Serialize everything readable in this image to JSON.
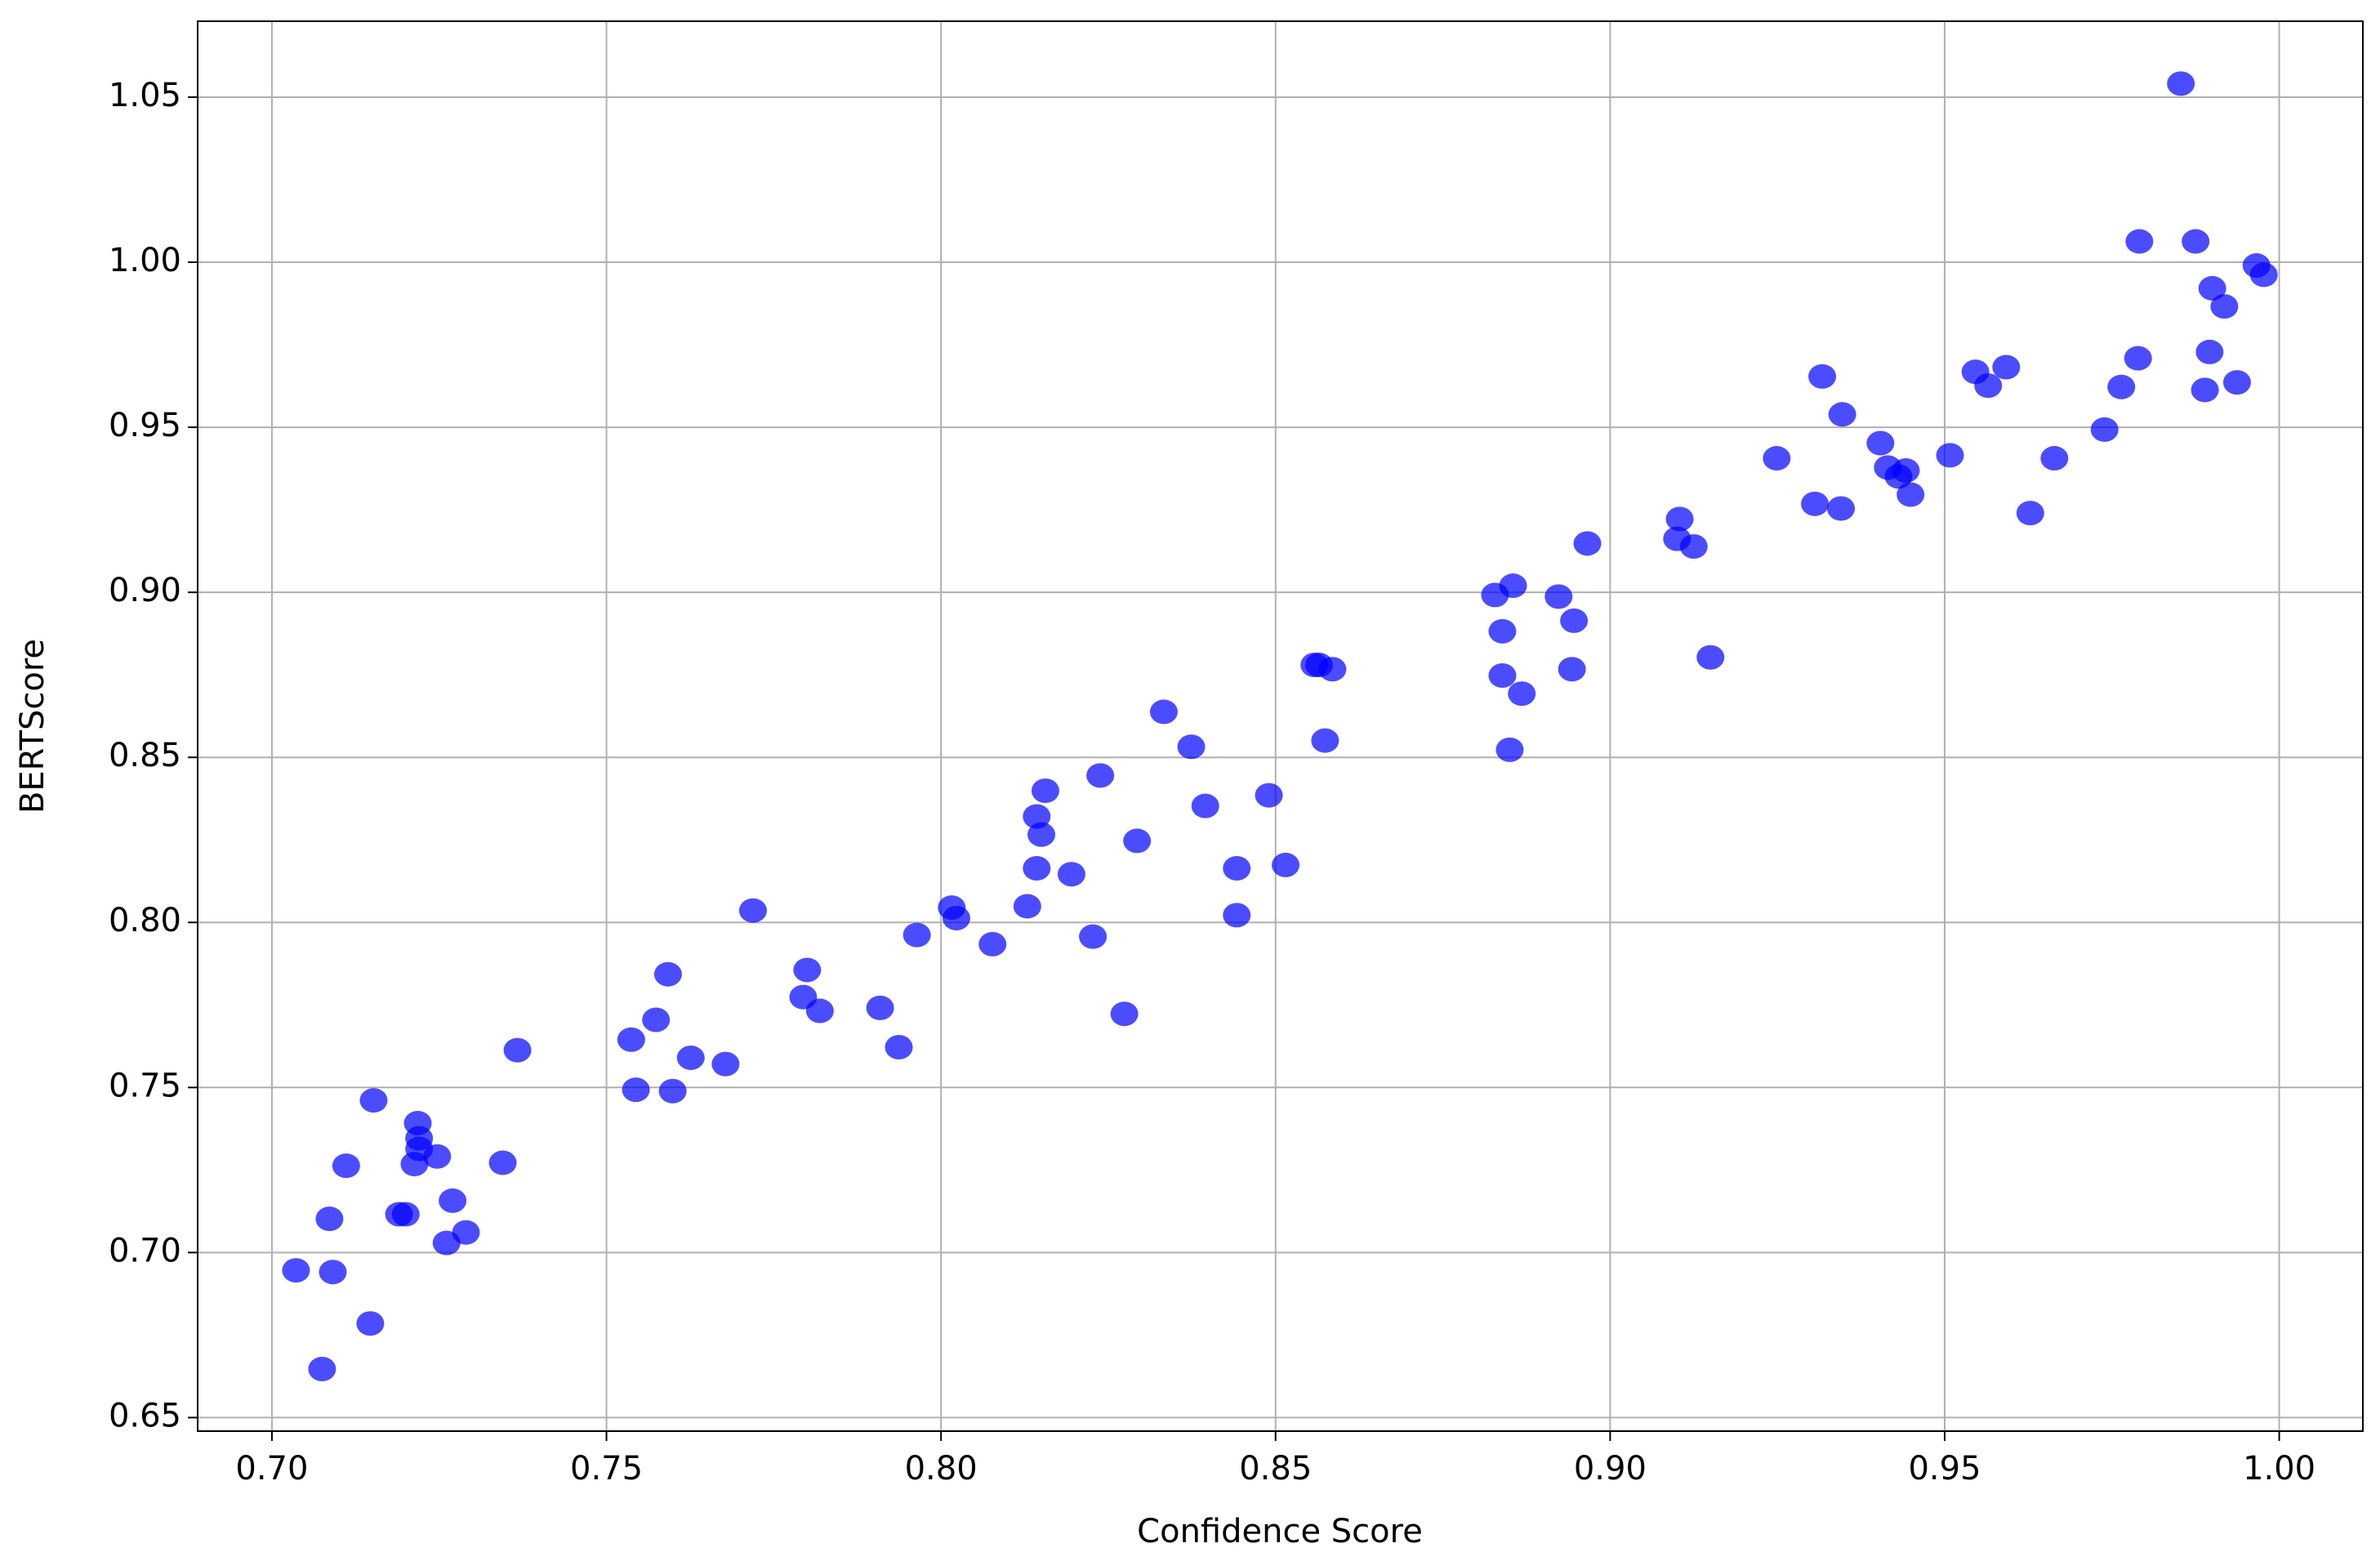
{
  "chart_data": {
    "type": "scatter",
    "xlabel": "Confidence Score",
    "ylabel": "BERTScore",
    "xlim": [
      0.6889,
      1.0125
    ],
    "ylim": [
      0.6459,
      1.073
    ],
    "xticks": [
      {
        "value": 0.7,
        "label": "0.70"
      },
      0.75,
      {
        "value": 0.8,
        "label": "0.80"
      },
      0.85,
      {
        "value": 0.9,
        "label": "0.90"
      },
      0.95,
      {
        "value": 1.0,
        "label": "1.00"
      }
    ],
    "yticks": [
      0.65,
      {
        "value": 0.7,
        "label": "0.70"
      },
      0.75,
      {
        "value": 0.8,
        "label": "0.80"
      },
      0.85,
      {
        "value": 0.9,
        "label": "0.90"
      },
      0.95,
      {
        "value": 1.0,
        "label": "1.00"
      },
      1.05
    ],
    "grid": true,
    "color": "#0000ff",
    "x": [
      0.7036,
      0.7075,
      0.7086,
      0.7091,
      0.7111,
      0.7147,
      0.7152,
      0.719,
      0.72,
      0.7213,
      0.7218,
      0.722,
      0.722,
      0.7247,
      0.7261,
      0.727,
      0.729,
      0.7345,
      0.7367,
      0.7537,
      0.7544,
      0.7574,
      0.7592,
      0.7599,
      0.7626,
      0.7678,
      0.7719,
      0.7794,
      0.78,
      0.7819,
      0.7909,
      0.7937,
      0.7964,
      0.8016,
      0.8023,
      0.8077,
      0.8129,
      0.8143,
      0.8143,
      0.815,
      0.8156,
      0.8195,
      0.8227,
      0.8238,
      0.8274,
      0.8293,
      0.8333,
      0.8374,
      0.8395,
      0.8442,
      0.8442,
      0.849,
      0.8515,
      0.8558,
      0.8565,
      0.8574,
      0.8585,
      0.8828,
      0.8839,
      0.8839,
      0.885,
      0.8855,
      0.8868,
      0.8923,
      0.8943,
      0.8946,
      0.8966,
      0.91,
      0.9104,
      0.9125,
      0.915,
      0.9249,
      0.9306,
      0.9317,
      0.9345,
      0.9347,
      0.9404,
      0.9415,
      0.9431,
      0.9442,
      0.9449,
      0.9508,
      0.9546,
      0.9565,
      0.9592,
      0.9628,
      0.9664,
      0.9739,
      0.9764,
      0.9789,
      0.9791,
      0.9853,
      0.9875,
      0.9889,
      0.9896,
      0.99,
      0.9918,
      0.9937,
      0.9966,
      0.9977
    ],
    "values": [
      0.6946,
      0.6647,
      0.7102,
      0.6941,
      0.7263,
      0.6785,
      0.7461,
      0.7116,
      0.7116,
      0.7268,
      0.7392,
      0.7346,
      0.7314,
      0.7291,
      0.7029,
      0.7157,
      0.7061,
      0.7272,
      0.7613,
      0.7645,
      0.7493,
      0.7705,
      0.7843,
      0.7489,
      0.759,
      0.7571,
      0.8036,
      0.7774,
      0.7856,
      0.7732,
      0.7741,
      0.7622,
      0.7962,
      0.8045,
      0.8013,
      0.7934,
      0.8049,
      0.8321,
      0.8164,
      0.8266,
      0.8399,
      0.8146,
      0.7957,
      0.8445,
      0.7723,
      0.8247,
      0.8638,
      0.8532,
      0.8353,
      0.8164,
      0.8022,
      0.8385,
      0.8174,
      0.878,
      0.878,
      0.8551,
      0.8767,
      0.8992,
      0.8882,
      0.8748,
      0.8523,
      0.902,
      0.8693,
      0.8987,
      0.8767,
      0.8914,
      0.9148,
      0.9162,
      0.9222,
      0.9139,
      0.8803,
      0.9406,
      0.9268,
      0.9654,
      0.9254,
      0.9539,
      0.9452,
      0.9378,
      0.9351,
      0.9369,
      0.9296,
      0.9415,
      0.9668,
      0.9626,
      0.9682,
      0.924,
      0.9406,
      0.9493,
      0.9622,
      0.9709,
      1.0063,
      1.0541,
      1.0063,
      0.9613,
      0.9728,
      0.9921,
      0.9866,
      0.9636,
      0.999,
      0.9962
    ]
  }
}
